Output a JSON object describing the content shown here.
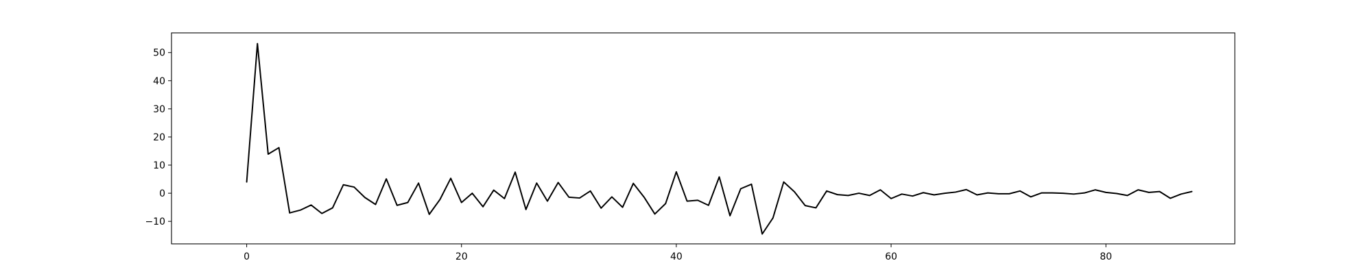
{
  "chart_data": {
    "type": "line",
    "title": "",
    "xlabel": "",
    "ylabel": "",
    "xlim": [
      -7,
      92
    ],
    "ylim": [
      -18,
      57
    ],
    "xticks": [
      0,
      20,
      40,
      60,
      80
    ],
    "yticks": [
      -10,
      0,
      10,
      20,
      30,
      40,
      50
    ],
    "grid": false,
    "series": [
      {
        "color": "#000000",
        "x": [
          0,
          1,
          2,
          3,
          4,
          5,
          6,
          7,
          8,
          9,
          10,
          11,
          12,
          13,
          14,
          15,
          16,
          17,
          18,
          19,
          20,
          21,
          22,
          23,
          24,
          25,
          26,
          27,
          28,
          29,
          30,
          31,
          32,
          33,
          34,
          35,
          36,
          37,
          38,
          39,
          40,
          41,
          42,
          43,
          44,
          45,
          46,
          47,
          48,
          49,
          50,
          51,
          52,
          53,
          54,
          55,
          56,
          57,
          58,
          59,
          60,
          61,
          62,
          63,
          64,
          65,
          66,
          67,
          68,
          69,
          70,
          71,
          72,
          73,
          74,
          75,
          76,
          77,
          78,
          79,
          80,
          81,
          82,
          83,
          84,
          85,
          86,
          87,
          88
        ],
        "y": [
          4,
          53.2,
          13.9,
          16.2,
          -7,
          -6,
          -4.2,
          -7.2,
          -5.2,
          3,
          2.2,
          -1.5,
          -4,
          5.1,
          -4.3,
          -3.3,
          3.6,
          -7.5,
          -2.2,
          5.3,
          -3.3,
          0,
          -4.8,
          1.1,
          -1.9,
          7.5,
          -5.8,
          3.6,
          -2.8,
          3.8,
          -1.4,
          -1.7,
          0.8,
          -5.3,
          -1.3,
          -5,
          3.5,
          -1.4,
          -7.4,
          -3.7,
          7.6,
          -2.8,
          -2.5,
          -4.3,
          5.8,
          -8,
          1.6,
          3.2,
          -14.5,
          -8.8,
          4,
          0.5,
          -4.4,
          -5.2,
          0.8,
          -0.5,
          -0.8,
          0,
          -0.8,
          1.2,
          -1.9,
          -0.3,
          -1,
          0.2,
          -0.6,
          0,
          0.4,
          1.3,
          -0.6,
          0.1,
          -0.2,
          -0.2,
          0.8,
          -1.3,
          0.1,
          0.1,
          0,
          -0.3,
          0.1,
          1.2,
          0.3,
          -0.1,
          -0.8,
          1.2,
          0.3,
          0.6,
          -1.8,
          -0.3,
          0.6
        ]
      }
    ]
  }
}
